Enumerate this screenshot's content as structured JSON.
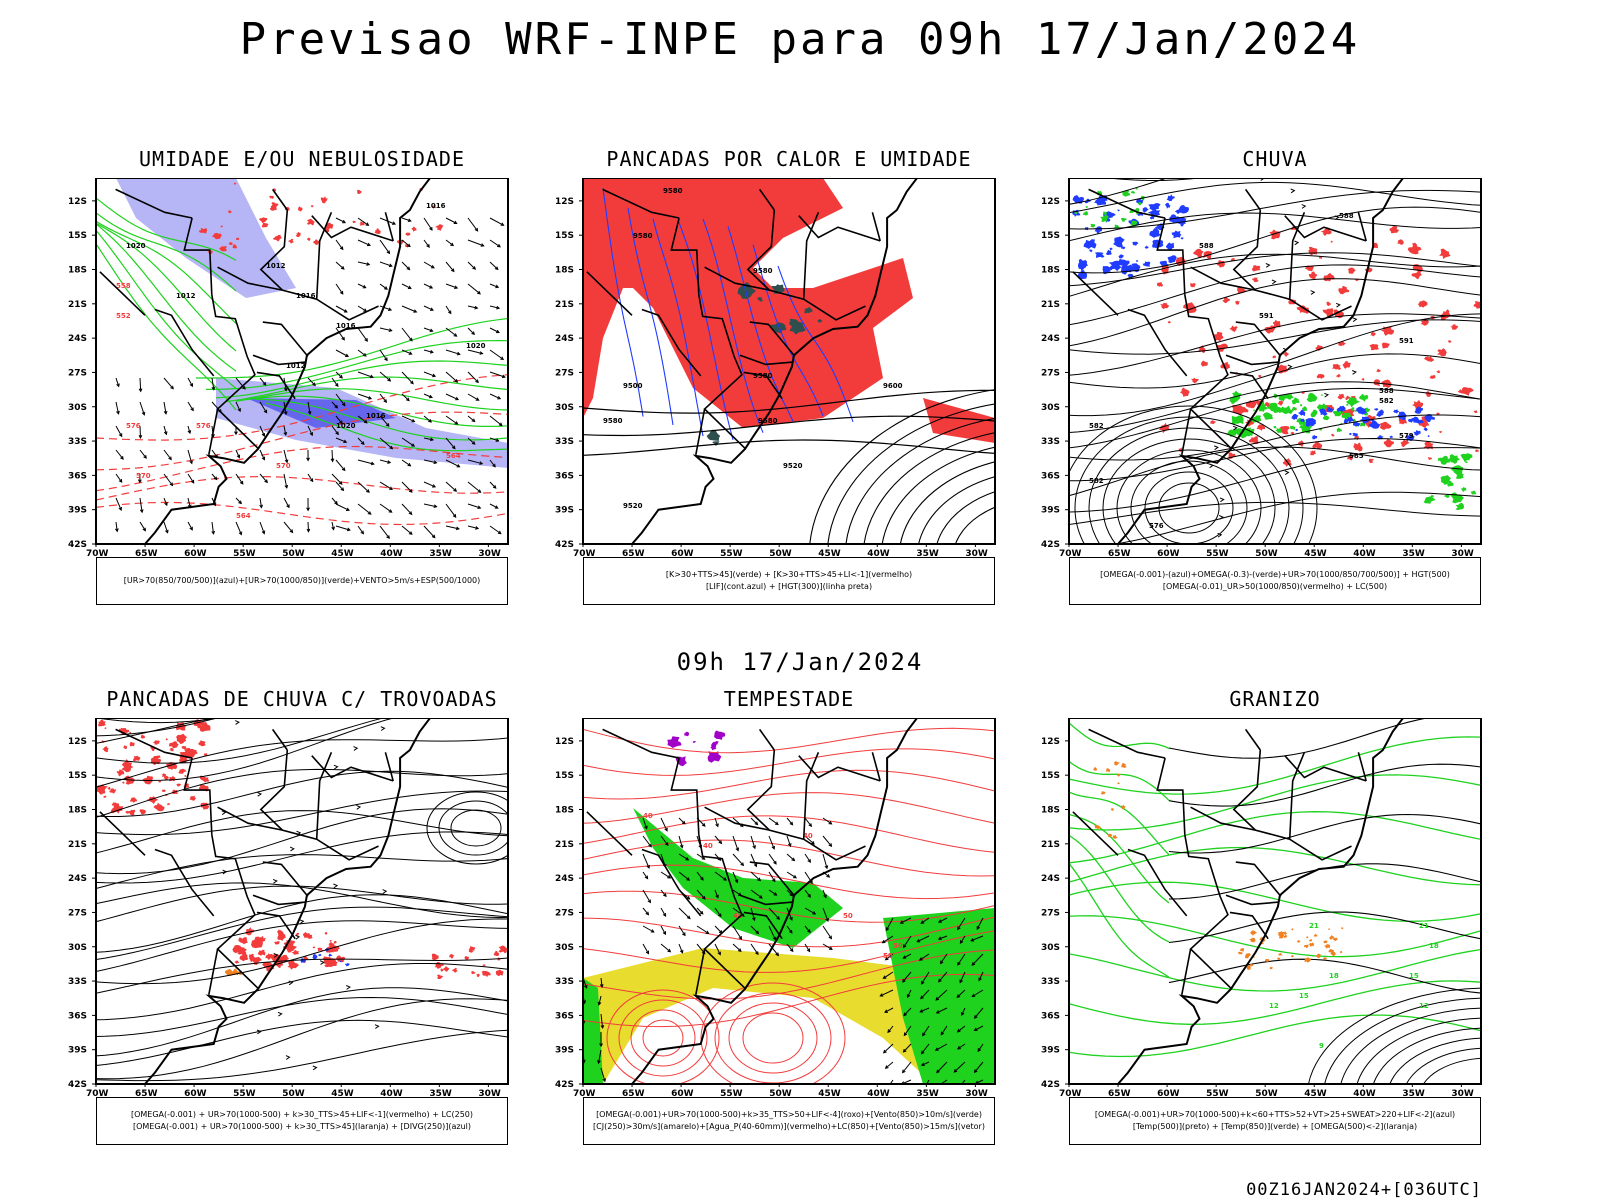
{
  "title": "Previsao WRF-INPE  para 09h 17/Jan/2024",
  "middle_title": "09h 17/Jan/2024",
  "footer_stamp": "00Z16JAN2024+[036UTC]",
  "axes": {
    "lat_labels": [
      "12S",
      "15S",
      "18S",
      "21S",
      "24S",
      "27S",
      "30S",
      "33S",
      "36S",
      "39S",
      "42S"
    ],
    "lon_labels": [
      "70W",
      "65W",
      "60W",
      "55W",
      "50W",
      "45W",
      "40W",
      "35W",
      "30W"
    ]
  },
  "colors": {
    "red": "#f23c3c",
    "blue": "#1f3cff",
    "green": "#1ed21e",
    "lavender": "#a4a4f4",
    "yellow": "#e8dc2e",
    "purple": "#a000c8",
    "orange": "#f08020",
    "darkslate": "#2f4f4f"
  },
  "panels": [
    {
      "id": "umidade",
      "title": "UMIDADE E/OU NEBULOSIDADE",
      "legend": [
        "[UR>70(850/700/500)](azul)+[UR>70(1000/850)](verde)+VENTO>5m/s+ESP(500/1000)"
      ],
      "contour_labels": [
        "1016",
        "1020",
        "1012",
        "1016",
        "1012",
        "1016",
        "1012",
        "1020",
        "1016",
        "1020",
        "576",
        "570",
        "564",
        "558",
        "552",
        "576",
        "570",
        "564"
      ]
    },
    {
      "id": "pancadas-calor",
      "title": "PANCADAS POR CALOR E UMIDADE",
      "legend": [
        "[K>30+TTS>45](verde) + [K>30+TTS>45+LI<-1](vermelho)",
        "[LIF](cont.azul) + [HGT(300)](linha preta)"
      ],
      "contour_labels": [
        "9580",
        "9580",
        "9580",
        "9580",
        "9580",
        "9500",
        "9580",
        "9600",
        "9520",
        "9520"
      ]
    },
    {
      "id": "chuva",
      "title": "CHUVA",
      "legend": [
        "[OMEGA(-0.001)-(azul)+OMEGA(-0.3)-(verde)+UR>70(1000/850/700/500)] + HGT(500)",
        "[OMEGA(-0.01)_UR>50(1000/850)(vermelho) + LC(500)"
      ],
      "contour_labels": [
        "588",
        "588",
        "591",
        "591",
        "588",
        "582",
        "582",
        "579",
        "582",
        "585",
        "576"
      ]
    },
    {
      "id": "trovoadas",
      "title": "PANCADAS DE CHUVA C/ TROVOADAS",
      "legend": [
        "[OMEGA(-0.001) + UR>70(1000-500) + k>30_TTS>45+LIF<-1](vermelho) + LC(250)",
        "[OMEGA(-0.001) + UR>70(1000-500) + k>30_TTS>45](laranja) + [DIVG(250)](azul)"
      ],
      "contour_labels": []
    },
    {
      "id": "tempestade",
      "title": "TEMPESTADE",
      "legend": [
        "[OMEGA(-0.001)+UR>70(1000-500)+k>35_TTS>50+LIF<-4](roxo)+[Vento(850)>10m/s](verde)",
        "[CJ(250)>30m/s](amarelo)+[Agua_P(40-60mm)](vermelho)+LC(850)+[Vento(850)>15m/s](vetor)"
      ],
      "contour_labels": [
        "40",
        "40",
        "40",
        "50",
        "50",
        "40",
        "50"
      ]
    },
    {
      "id": "granizo",
      "title": "GRANIZO",
      "legend": [
        "[OMEGA(-0.001)+UR>70(1000-500)+k<60+TTS>52+VT>25+SWEAT>220+LIF<-2](azul)",
        "[Temp(500)](preto) + [Temp(850)](verde) + [OMEGA(500)<-2](laranja)"
      ],
      "contour_labels": [
        "21",
        "18",
        "15",
        "12",
        "21",
        "18",
        "15",
        "12",
        "9"
      ]
    }
  ]
}
